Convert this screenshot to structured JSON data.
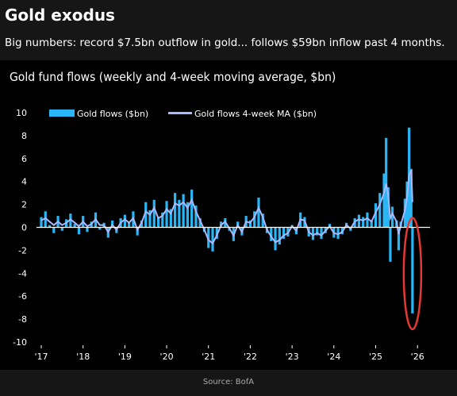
{
  "headline": "Gold exodus",
  "subheadline": "Big numbers: record $7.5bn outflow in gold... follows $59bn inflow past 4 months.",
  "source": "Source: BofA",
  "colors": {
    "background": "#161616",
    "panel": "#000000",
    "bars": "#29b6f6",
    "ma_line": "#a9b8ff",
    "highlight": "#e53935",
    "axis": "#ffffff"
  },
  "chart_data": {
    "type": "bar",
    "title": "Gold fund flows (weekly and 4-week moving average, $bn)",
    "x_tick_labels": [
      "'17",
      "'18",
      "'19",
      "'20",
      "'21",
      "'22",
      "'23",
      "'24",
      "'25",
      "'26"
    ],
    "x_ticks": [
      2017,
      2018,
      2019,
      2020,
      2021,
      2022,
      2023,
      2024,
      2025,
      2026
    ],
    "xlim": [
      2017,
      2026.3
    ],
    "ylim": [
      -10,
      10
    ],
    "y_ticks": [
      10,
      8,
      6,
      4,
      2,
      0,
      -2,
      -4,
      -6,
      -8,
      -10
    ],
    "grid": false,
    "legend_position": "top-left",
    "annotation": "red ellipse around the late-2025 record outflow",
    "series": [
      {
        "name": "Gold flows ($bn)",
        "type": "bar",
        "points": [
          [
            2017.0,
            0.9
          ],
          [
            2017.1,
            1.4
          ],
          [
            2017.2,
            0.2
          ],
          [
            2017.3,
            -0.5
          ],
          [
            2017.4,
            1.0
          ],
          [
            2017.5,
            -0.3
          ],
          [
            2017.6,
            0.7
          ],
          [
            2017.7,
            1.2
          ],
          [
            2017.8,
            0.3
          ],
          [
            2017.9,
            -0.6
          ],
          [
            2018.0,
            1.0
          ],
          [
            2018.1,
            -0.4
          ],
          [
            2018.2,
            0.5
          ],
          [
            2018.3,
            1.3
          ],
          [
            2018.4,
            -0.2
          ],
          [
            2018.5,
            0.4
          ],
          [
            2018.6,
            -0.9
          ],
          [
            2018.7,
            0.6
          ],
          [
            2018.8,
            -0.5
          ],
          [
            2018.9,
            0.8
          ],
          [
            2019.0,
            1.1
          ],
          [
            2019.1,
            0.4
          ],
          [
            2019.2,
            1.4
          ],
          [
            2019.3,
            -0.7
          ],
          [
            2019.4,
            0.6
          ],
          [
            2019.5,
            2.2
          ],
          [
            2019.6,
            1.5
          ],
          [
            2019.7,
            2.4
          ],
          [
            2019.8,
            0.9
          ],
          [
            2019.9,
            1.3
          ],
          [
            2020.0,
            2.3
          ],
          [
            2020.1,
            1.6
          ],
          [
            2020.2,
            3.0
          ],
          [
            2020.3,
            2.4
          ],
          [
            2020.4,
            2.9
          ],
          [
            2020.5,
            2.2
          ],
          [
            2020.6,
            3.3
          ],
          [
            2020.7,
            1.9
          ],
          [
            2020.8,
            0.8
          ],
          [
            2020.9,
            -0.4
          ],
          [
            2021.0,
            -1.8
          ],
          [
            2021.1,
            -2.1
          ],
          [
            2021.2,
            -1.0
          ],
          [
            2021.3,
            0.5
          ],
          [
            2021.4,
            0.8
          ],
          [
            2021.5,
            -0.3
          ],
          [
            2021.6,
            -1.2
          ],
          [
            2021.7,
            0.5
          ],
          [
            2021.8,
            -0.7
          ],
          [
            2021.9,
            1.0
          ],
          [
            2022.0,
            0.6
          ],
          [
            2022.1,
            1.4
          ],
          [
            2022.2,
            2.6
          ],
          [
            2022.3,
            1.2
          ],
          [
            2022.4,
            -0.5
          ],
          [
            2022.5,
            -1.2
          ],
          [
            2022.6,
            -2.0
          ],
          [
            2022.7,
            -1.5
          ],
          [
            2022.8,
            -1.0
          ],
          [
            2022.9,
            -0.8
          ],
          [
            2023.0,
            0.2
          ],
          [
            2023.1,
            -0.6
          ],
          [
            2023.2,
            1.3
          ],
          [
            2023.3,
            0.9
          ],
          [
            2023.4,
            -0.8
          ],
          [
            2023.5,
            -1.1
          ],
          [
            2023.6,
            -0.7
          ],
          [
            2023.7,
            -1.0
          ],
          [
            2023.8,
            -0.5
          ],
          [
            2023.9,
            0.3
          ],
          [
            2024.0,
            -0.9
          ],
          [
            2024.1,
            -1.0
          ],
          [
            2024.2,
            -0.6
          ],
          [
            2024.3,
            0.4
          ],
          [
            2024.4,
            -0.3
          ],
          [
            2024.5,
            0.8
          ],
          [
            2024.6,
            1.1
          ],
          [
            2024.7,
            0.9
          ],
          [
            2024.8,
            1.3
          ],
          [
            2024.9,
            0.6
          ],
          [
            2025.0,
            2.1
          ],
          [
            2025.1,
            3.0
          ],
          [
            2025.2,
            4.7
          ],
          [
            2025.25,
            7.8
          ],
          [
            2025.3,
            3.5
          ],
          [
            2025.35,
            -3.0
          ],
          [
            2025.4,
            1.8
          ],
          [
            2025.5,
            0.6
          ],
          [
            2025.55,
            -2.0
          ],
          [
            2025.6,
            0.5
          ],
          [
            2025.7,
            2.5
          ],
          [
            2025.75,
            4.0
          ],
          [
            2025.8,
            8.7
          ],
          [
            2025.85,
            5.1
          ],
          [
            2025.88,
            -7.5
          ]
        ]
      },
      {
        "name": "Gold flows 4-week MA ($bn)",
        "type": "line",
        "points": [
          [
            2017.0,
            0.6
          ],
          [
            2017.1,
            0.8
          ],
          [
            2017.2,
            0.5
          ],
          [
            2017.3,
            0.2
          ],
          [
            2017.4,
            0.5
          ],
          [
            2017.5,
            0.2
          ],
          [
            2017.6,
            0.4
          ],
          [
            2017.7,
            0.7
          ],
          [
            2017.8,
            0.4
          ],
          [
            2017.9,
            0.1
          ],
          [
            2018.0,
            0.5
          ],
          [
            2018.1,
            0.1
          ],
          [
            2018.2,
            0.3
          ],
          [
            2018.3,
            0.7
          ],
          [
            2018.4,
            0.2
          ],
          [
            2018.5,
            0.2
          ],
          [
            2018.6,
            -0.4
          ],
          [
            2018.7,
            0.2
          ],
          [
            2018.8,
            -0.2
          ],
          [
            2018.9,
            0.4
          ],
          [
            2019.0,
            0.7
          ],
          [
            2019.1,
            0.4
          ],
          [
            2019.2,
            0.8
          ],
          [
            2019.3,
            -0.2
          ],
          [
            2019.4,
            0.4
          ],
          [
            2019.5,
            1.4
          ],
          [
            2019.6,
            1.1
          ],
          [
            2019.7,
            1.7
          ],
          [
            2019.8,
            0.8
          ],
          [
            2019.9,
            1.0
          ],
          [
            2020.0,
            1.6
          ],
          [
            2020.1,
            1.2
          ],
          [
            2020.2,
            2.1
          ],
          [
            2020.3,
            1.9
          ],
          [
            2020.4,
            2.2
          ],
          [
            2020.5,
            1.7
          ],
          [
            2020.6,
            2.4
          ],
          [
            2020.7,
            1.4
          ],
          [
            2020.8,
            0.6
          ],
          [
            2020.9,
            -0.2
          ],
          [
            2021.0,
            -1.1
          ],
          [
            2021.1,
            -1.4
          ],
          [
            2021.2,
            -0.7
          ],
          [
            2021.3,
            0.2
          ],
          [
            2021.4,
            0.5
          ],
          [
            2021.5,
            -0.1
          ],
          [
            2021.6,
            -0.7
          ],
          [
            2021.7,
            0.2
          ],
          [
            2021.8,
            -0.4
          ],
          [
            2021.9,
            0.5
          ],
          [
            2022.0,
            0.4
          ],
          [
            2022.1,
            0.9
          ],
          [
            2022.2,
            1.7
          ],
          [
            2022.3,
            0.9
          ],
          [
            2022.4,
            -0.2
          ],
          [
            2022.5,
            -0.8
          ],
          [
            2022.6,
            -1.3
          ],
          [
            2022.7,
            -1.1
          ],
          [
            2022.8,
            -0.7
          ],
          [
            2022.9,
            -0.5
          ],
          [
            2023.0,
            0.1
          ],
          [
            2023.1,
            -0.3
          ],
          [
            2023.2,
            0.7
          ],
          [
            2023.3,
            0.6
          ],
          [
            2023.4,
            -0.4
          ],
          [
            2023.5,
            -0.7
          ],
          [
            2023.6,
            -0.5
          ],
          [
            2023.7,
            -0.7
          ],
          [
            2023.8,
            -0.3
          ],
          [
            2023.9,
            0.1
          ],
          [
            2024.0,
            -0.5
          ],
          [
            2024.1,
            -0.6
          ],
          [
            2024.2,
            -0.4
          ],
          [
            2024.3,
            0.2
          ],
          [
            2024.4,
            -0.1
          ],
          [
            2024.5,
            0.5
          ],
          [
            2024.6,
            0.7
          ],
          [
            2024.7,
            0.6
          ],
          [
            2024.8,
            0.8
          ],
          [
            2024.9,
            0.5
          ],
          [
            2025.0,
            1.3
          ],
          [
            2025.1,
            2.0
          ],
          [
            2025.2,
            3.0
          ],
          [
            2025.25,
            3.8
          ],
          [
            2025.3,
            2.8
          ],
          [
            2025.35,
            0.8
          ],
          [
            2025.4,
            1.2
          ],
          [
            2025.5,
            0.5
          ],
          [
            2025.55,
            -0.6
          ],
          [
            2025.6,
            0.2
          ],
          [
            2025.7,
            1.5
          ],
          [
            2025.75,
            2.6
          ],
          [
            2025.8,
            4.6
          ],
          [
            2025.85,
            5.0
          ],
          [
            2025.88,
            2.2
          ]
        ]
      }
    ]
  }
}
